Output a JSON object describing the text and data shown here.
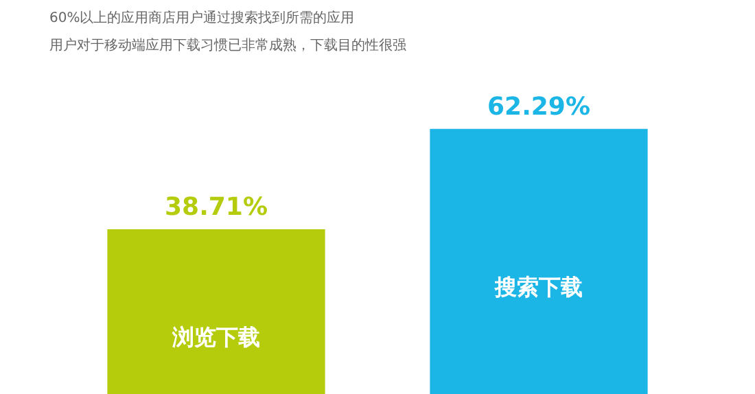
{
  "chart_data": {
    "type": "bar",
    "title": "60%以上的应用商店用户通过搜索找到所需的应用",
    "subtitle": "用户对于移动端应用下载习惯已非常成熟，下载目的性很强",
    "categories": [
      "浏览下载",
      "搜索下载"
    ],
    "values": [
      38.71,
      62.29
    ],
    "value_labels": [
      "38.71%",
      "62.29%"
    ],
    "colors": [
      "#b4cc0c",
      "#1bb6e6"
    ]
  }
}
